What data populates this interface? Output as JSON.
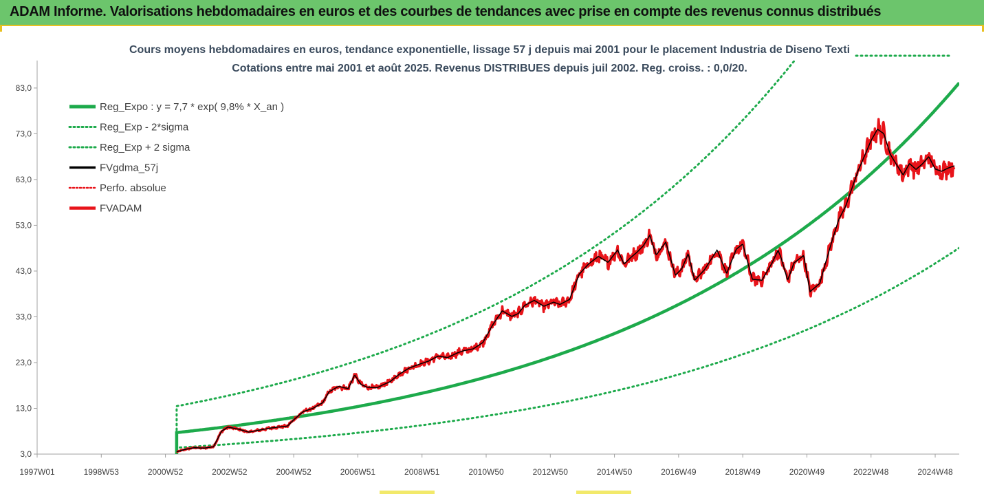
{
  "banner": {
    "title": "ADAM Informe. Valorisations hebdomadaires en euros et des courbes de tendances avec prise en compte des revenus connus distribués"
  },
  "colors": {
    "banner_bg": "#6cc56c",
    "accent": "#e8c020",
    "trend": "#1daa4b",
    "fvgdma": "#000000",
    "fvadam": "#e8141a",
    "perfo": "#e8141a"
  },
  "chart_data": {
    "type": "line",
    "title": "Cours moyens hebdomadaires en euros, tendance exponentielle, lissage 57 j depuis mai 2001 pour le placement Industria de Diseno Texti",
    "subtitle": "Cotations entre mai 2001 et août 2025. Revenus DISTRIBUES depuis juil 2002. Reg. croiss. : 0,0/20.",
    "xlabel": "",
    "ylabel": "",
    "ylim": [
      3.0,
      89.0
    ],
    "yticks": [
      3.0,
      13.0,
      23.0,
      33.0,
      43.0,
      53.0,
      63.0,
      73.0,
      83.0
    ],
    "ytick_labels": [
      "3,0",
      "13,0",
      "23,0",
      "33,0",
      "43,0",
      "53,0",
      "63,0",
      "73,0",
      "83,0"
    ],
    "xlim": [
      1997.0,
      2025.75
    ],
    "xticks": [
      1997.0,
      1999.0,
      2001.0,
      2003.0,
      2005.0,
      2007.0,
      2009.0,
      2011.0,
      2013.0,
      2015.0,
      2017.0,
      2019.0,
      2021.0,
      2023.0,
      2025.0
    ],
    "xtick_labels": [
      "1997W01",
      "1998W53",
      "2000W52",
      "2002W52",
      "2004W52",
      "2006W51",
      "2008W51",
      "2010W50",
      "2012W50",
      "2014W50",
      "2016W49",
      "2018W49",
      "2020W49",
      "2022W48",
      "2024W48"
    ],
    "grid": false,
    "legend_position": "top-left",
    "regression": {
      "a": 7.7,
      "rate": 0.098,
      "sigma_factor": 1.75,
      "x0": 2001.35
    },
    "series": [
      {
        "name": "Reg_Expo : y = 7,7 * exp( 9,8% *  X_an )",
        "style": "solid",
        "color": "#1daa4b",
        "kind": "trend"
      },
      {
        "name": "Reg_Exp - 2*sigma",
        "style": "dotted",
        "color": "#1daa4b",
        "kind": "trend_low"
      },
      {
        "name": "Reg_Exp + 2 sigma",
        "style": "dotted",
        "color": "#1daa4b",
        "kind": "trend_high"
      },
      {
        "name": "FVgdma_57j",
        "style": "solid",
        "color": "#000000",
        "kind": "smooth"
      },
      {
        "name": "Perfo. absolue",
        "style": "dotted",
        "color": "#e8141a",
        "kind": "perfo"
      },
      {
        "name": "FVADAM",
        "style": "solid",
        "color": "#e8141a",
        "kind": "price",
        "x": [
          2001.35,
          2001.6,
          2001.9,
          2002.2,
          2002.5,
          2002.75,
          2002.95,
          2003.1,
          2003.3,
          2003.6,
          2003.9,
          2004.2,
          2004.5,
          2004.8,
          2005.0,
          2005.3,
          2005.6,
          2005.9,
          2006.1,
          2006.4,
          2006.7,
          2006.9,
          2007.1,
          2007.3,
          2007.6,
          2007.8,
          2008.0,
          2008.3,
          2008.6,
          2008.9,
          2009.2,
          2009.5,
          2009.8,
          2010.1,
          2010.3,
          2010.6,
          2010.9,
          2011.2,
          2011.5,
          2011.8,
          2012.0,
          2012.2,
          2012.5,
          2012.8,
          2013.1,
          2013.3,
          2013.6,
          2013.9,
          2014.2,
          2014.5,
          2014.8,
          2015.1,
          2015.3,
          2015.5,
          2015.7,
          2015.9,
          2016.1,
          2016.3,
          2016.6,
          2016.9,
          2017.1,
          2017.3,
          2017.5,
          2017.8,
          2018.0,
          2018.2,
          2018.5,
          2018.8,
          2019.0,
          2019.3,
          2019.6,
          2019.9,
          2020.1,
          2020.2,
          2020.4,
          2020.6,
          2020.9,
          2021.1,
          2021.4,
          2021.6,
          2021.8,
          2022.0,
          2022.2,
          2022.4,
          2022.6,
          2022.8,
          2023.0,
          2023.2,
          2023.4,
          2023.6,
          2023.8,
          2024.0,
          2024.2,
          2024.4,
          2024.6,
          2024.8,
          2025.0,
          2025.2,
          2025.4,
          2025.6
        ],
        "values": [
          3.5,
          4.0,
          4.4,
          4.3,
          4.6,
          8.0,
          8.9,
          8.7,
          8.4,
          7.8,
          8.2,
          8.6,
          8.9,
          9.1,
          10.5,
          12.3,
          13.0,
          14.2,
          16.6,
          17.8,
          17.3,
          20.3,
          18.2,
          17.6,
          17.5,
          18.2,
          18.8,
          20.5,
          21.8,
          22.6,
          23.3,
          24.4,
          24.1,
          25.1,
          25.6,
          26.0,
          27.4,
          31.2,
          34.3,
          33.1,
          33.7,
          35.5,
          36.6,
          35.3,
          36.2,
          35.7,
          36.8,
          42.3,
          44.6,
          46.2,
          44.9,
          47.6,
          44.5,
          45.9,
          47.1,
          48.5,
          50.8,
          46.5,
          49.3,
          42.1,
          43.5,
          46.8,
          41.0,
          43.2,
          45.4,
          47.6,
          42.5,
          47.8,
          48.9,
          41.2,
          41.0,
          44.6,
          47.5,
          45.8,
          41.0,
          44.8,
          46.4,
          38.5,
          40.3,
          45.2,
          50.0,
          54.4,
          57.0,
          61.0,
          65.0,
          68.2,
          71.5,
          74.0,
          73.0,
          68.5,
          66.2,
          64.0,
          66.5,
          65.2,
          66.4,
          68.0,
          65.3,
          64.8,
          65.5,
          66.0
        ]
      }
    ]
  }
}
